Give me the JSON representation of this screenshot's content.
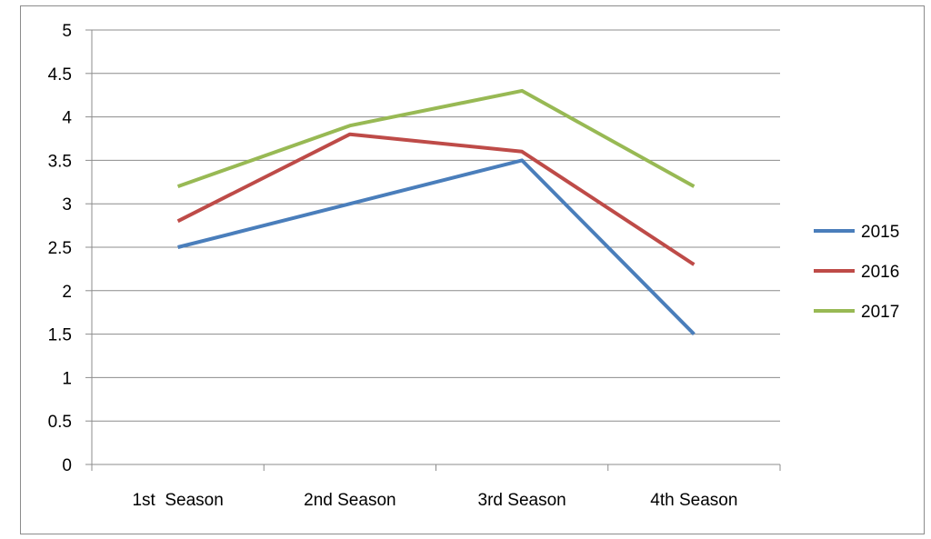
{
  "chart_data": {
    "type": "line",
    "categories": [
      "1st  Season",
      "2nd Season",
      "3rd Season",
      "4th Season"
    ],
    "series": [
      {
        "name": "2015",
        "values": [
          2.5,
          3.0,
          3.5,
          1.5
        ],
        "color": "#4a7ebb"
      },
      {
        "name": "2016",
        "values": [
          2.8,
          3.8,
          3.6,
          2.3
        ],
        "color": "#be4b48"
      },
      {
        "name": "2017",
        "values": [
          3.2,
          3.9,
          4.3,
          3.2
        ],
        "color": "#98b954"
      }
    ],
    "ylim": [
      0,
      5
    ],
    "yticks": [
      "0",
      "0.5",
      "1",
      "1.5",
      "2",
      "2.5",
      "3",
      "3.5",
      "4",
      "4.5",
      "5"
    ],
    "grid": "horizontal",
    "legend": "right"
  }
}
